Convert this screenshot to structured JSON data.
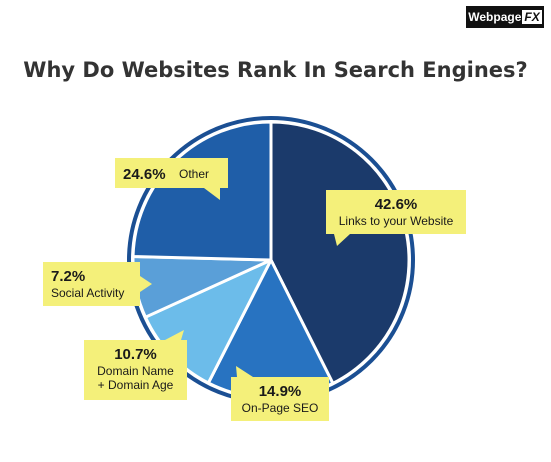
{
  "logo": {
    "text": "Webpage",
    "accent": "FX"
  },
  "title": "Why Do Websites Rank In Search Engines?",
  "chart_data": {
    "type": "pie",
    "title": "Why Do Websites Rank In Search Engines?",
    "slices": [
      {
        "label": "Links to your Website",
        "value": 42.6,
        "value_label": "42.6%",
        "color": "#1b3a6b"
      },
      {
        "label": "On-Page SEO",
        "value": 14.9,
        "value_label": "14.9%",
        "color": "#2873c1"
      },
      {
        "label": "Domain Name + Domain Age",
        "label_lines": [
          "Domain Name",
          "+ Domain Age"
        ],
        "value": 10.7,
        "value_label": "10.7%",
        "color": "#6cbcea"
      },
      {
        "label": "Social Activity",
        "value": 7.2,
        "value_label": "7.2%",
        "color": "#5a9fd8"
      },
      {
        "label": "Other",
        "value": 24.6,
        "value_label": "24.6%",
        "color": "#1f5ea8"
      }
    ],
    "callout_color": "#f4f07a",
    "outline_color": "#1b4f93"
  }
}
